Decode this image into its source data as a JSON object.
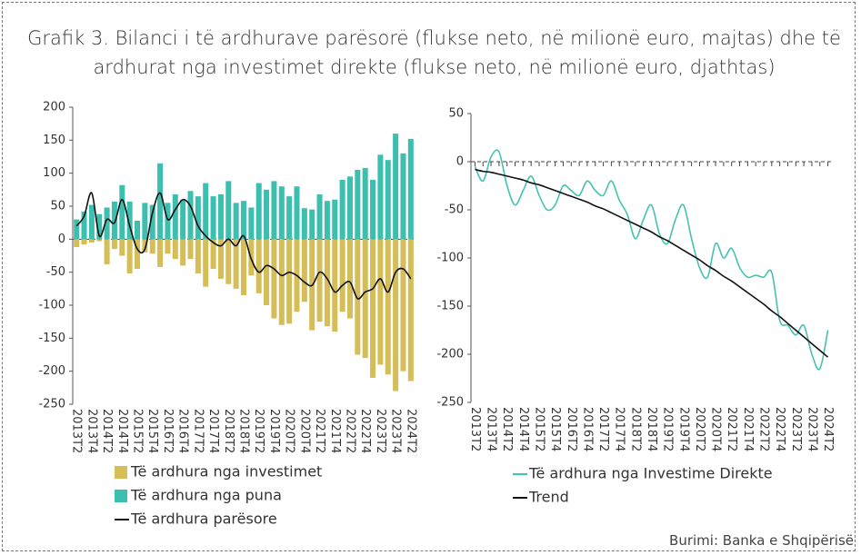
{
  "title": "Grafik 3. Bilanci i të ardhurave parësorë (flukse neto, në milionë euro, majtas) dhe të ardhurat nga investimet direkte (flukse neto, në milionë euro, djathtas)",
  "source": "Burimi: Banka e Shqipërisë",
  "chart_data": [
    {
      "type": "bar",
      "categories": [
        "2013T2",
        null,
        "2013T4",
        null,
        "2014T2",
        null,
        "2014T4",
        null,
        "2015T2",
        null,
        "2015T4",
        null,
        "2016T2",
        null,
        "2016T4",
        null,
        "2017T2",
        null,
        "2017T4",
        null,
        "2018T2",
        null,
        "2018T4",
        null,
        "2019T2",
        null,
        "2019T4",
        null,
        "2020T2",
        null,
        "2020T4",
        null,
        "2021T2",
        null,
        "2021T4",
        null,
        "2022T2",
        null,
        "2022T4",
        null,
        "2023T2",
        null,
        "2023T4",
        null,
        "2024T2"
      ],
      "ylim": [
        -250,
        200
      ],
      "yticks": [
        -250,
        -200,
        -150,
        -100,
        -50,
        0,
        50,
        100,
        150,
        200
      ],
      "series": [
        {
          "name": "Të ardhura nga investimet",
          "color": "#d5bd57",
          "type": "bar",
          "values": [
            -12,
            -8,
            -5,
            -3,
            -38,
            -15,
            -25,
            -52,
            -45,
            -20,
            -22,
            -42,
            -22,
            -30,
            -40,
            -30,
            -52,
            -72,
            -45,
            -60,
            -68,
            -75,
            -85,
            -55,
            -82,
            -100,
            -120,
            -130,
            -128,
            -110,
            -95,
            -138,
            -125,
            -132,
            -140,
            -110,
            -120,
            -175,
            -180,
            -210,
            -190,
            -205,
            -230,
            -200,
            -215
          ]
        },
        {
          "name": "Të ardhura nga puna",
          "color": "#3cbfae",
          "type": "bar",
          "values": [
            30,
            42,
            52,
            38,
            48,
            57,
            82,
            57,
            28,
            55,
            52,
            115,
            55,
            68,
            60,
            73,
            65,
            85,
            65,
            68,
            88,
            55,
            58,
            48,
            85,
            75,
            88,
            80,
            65,
            80,
            47,
            45,
            68,
            58,
            60,
            90,
            95,
            105,
            108,
            90,
            128,
            120,
            160,
            130,
            152
          ]
        },
        {
          "name": "Të ardhura parësore",
          "color": "#111111",
          "type": "line",
          "values": [
            20,
            35,
            70,
            5,
            30,
            25,
            60,
            20,
            -15,
            -15,
            40,
            70,
            30,
            45,
            60,
            50,
            20,
            5,
            -5,
            -10,
            0,
            -10,
            5,
            -30,
            -50,
            -40,
            -45,
            -55,
            -50,
            -55,
            -65,
            -70,
            -50,
            -60,
            -80,
            -70,
            -65,
            -90,
            -80,
            -75,
            -60,
            -80,
            -50,
            -45,
            -60
          ]
        }
      ]
    },
    {
      "type": "line",
      "categories": [
        "2013T2",
        null,
        "2013T4",
        null,
        "2014T2",
        null,
        "2014T4",
        null,
        "2015T2",
        null,
        "2015T4",
        null,
        "2016T2",
        null,
        "2016T4",
        null,
        "2017T2",
        null,
        "2017T4",
        null,
        "2018T2",
        null,
        "2018T4",
        null,
        "2019T2",
        null,
        "2019T4",
        null,
        "2020T2",
        null,
        "2020T4",
        null,
        "2021T2",
        null,
        "2021T4",
        null,
        "2022T2",
        null,
        "2022T4",
        null,
        "2023T2",
        null,
        "2023T4",
        null,
        "2024T2"
      ],
      "ylim": [
        -250,
        50
      ],
      "yticks": [
        -250,
        -200,
        -150,
        -100,
        -50,
        0,
        50
      ],
      "series": [
        {
          "name": "Të ardhura nga Investime Direkte",
          "color": "#45c1b2",
          "type": "line",
          "values": [
            -5,
            -20,
            5,
            10,
            -25,
            -45,
            -30,
            -15,
            -35,
            -50,
            -45,
            -25,
            -30,
            -35,
            -20,
            -30,
            -35,
            -20,
            -40,
            -55,
            -80,
            -60,
            -45,
            -75,
            -85,
            -60,
            -45,
            -80,
            -110,
            -120,
            -85,
            -100,
            -90,
            -110,
            -120,
            -118,
            -120,
            -115,
            -165,
            -170,
            -180,
            -170,
            -200,
            -215,
            -175
          ]
        },
        {
          "name": "Trend",
          "color": "#111111",
          "type": "line",
          "values": [
            -8,
            -10,
            -11,
            -13,
            -15,
            -17,
            -19,
            -22,
            -24,
            -27,
            -30,
            -33,
            -36,
            -39,
            -42,
            -46,
            -49,
            -53,
            -57,
            -61,
            -65,
            -69,
            -73,
            -78,
            -82,
            -87,
            -92,
            -97,
            -102,
            -108,
            -113,
            -119,
            -124,
            -130,
            -136,
            -142,
            -148,
            -155,
            -161,
            -168,
            -175,
            -182,
            -189,
            -196,
            -203
          ]
        }
      ]
    }
  ]
}
